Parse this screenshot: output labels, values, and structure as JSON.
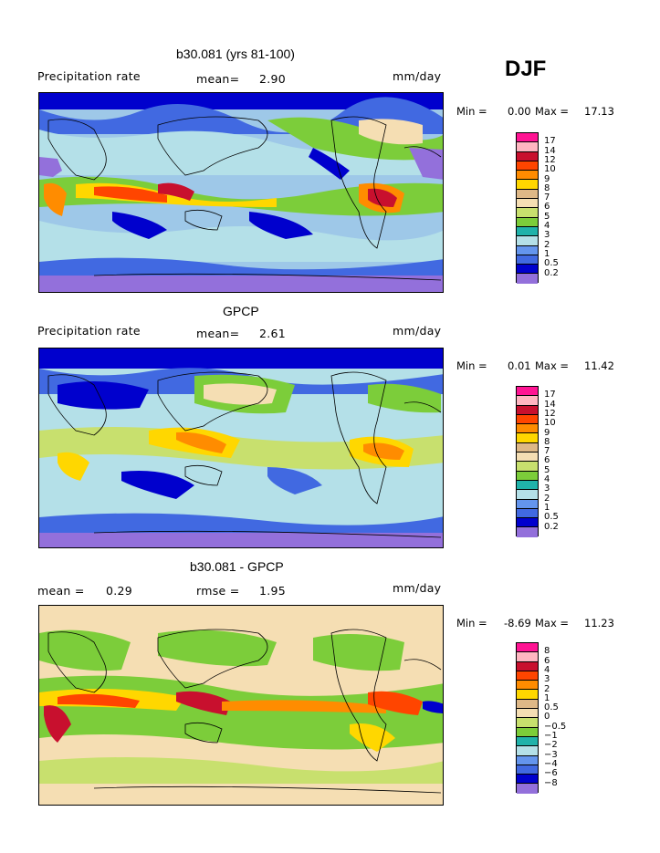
{
  "season": "DJF",
  "panels": [
    {
      "title": "b30.081 (yrs 81-100)",
      "left_label": "Precipitation rate",
      "mean_label": "mean=",
      "mean_value": "2.90",
      "units": "mm/day",
      "min_label": "Min =",
      "min_value": "0.00",
      "max_label": "Max =",
      "max_value": "17.13",
      "colorbar": {
        "colors": [
          "#ff1493",
          "#ffb6c1",
          "#c8102e",
          "#ff4500",
          "#ff8c00",
          "#ffd700",
          "#deb887",
          "#f5deb3",
          "#c8e06e",
          "#7ccd3a",
          "#20b2aa",
          "#b4e0e8",
          "#6495ed",
          "#4169e1",
          "#0000cd",
          "#9370db"
        ],
        "labels": [
          "17",
          "14",
          "12",
          "10",
          "9",
          "8",
          "7",
          "6",
          "5",
          "4",
          "3",
          "2",
          "1",
          "0.5",
          "0.2"
        ]
      }
    },
    {
      "title": "GPCP",
      "left_label": "Precipitation rate",
      "mean_label": "mean=",
      "mean_value": "2.61",
      "units": "mm/day",
      "min_label": "Min =",
      "min_value": "0.01",
      "max_label": "Max =",
      "max_value": "11.42",
      "colorbar": {
        "colors": [
          "#ff1493",
          "#ffb6c1",
          "#c8102e",
          "#ff4500",
          "#ff8c00",
          "#ffd700",
          "#deb887",
          "#f5deb3",
          "#c8e06e",
          "#7ccd3a",
          "#20b2aa",
          "#b4e0e8",
          "#6495ed",
          "#4169e1",
          "#0000cd",
          "#9370db"
        ],
        "labels": [
          "17",
          "14",
          "12",
          "10",
          "9",
          "8",
          "7",
          "6",
          "5",
          "4",
          "3",
          "2",
          "1",
          "0.5",
          "0.2"
        ]
      }
    },
    {
      "title": "b30.081 - GPCP",
      "left_label": "mean =",
      "left_value": "0.29",
      "mean_label": "rmse =",
      "mean_value": "1.95",
      "units": "mm/day",
      "min_label": "Min =",
      "min_value": "-8.69",
      "max_label": "Max =",
      "max_value": "11.23",
      "colorbar": {
        "colors": [
          "#ff1493",
          "#ffb6c1",
          "#c8102e",
          "#ff4500",
          "#ff8c00",
          "#ffd700",
          "#deb887",
          "#f5deb3",
          "#c8e06e",
          "#7ccd3a",
          "#20b2aa",
          "#b4e0e8",
          "#6495ed",
          "#4169e1",
          "#0000cd",
          "#9370db"
        ],
        "labels": [
          "8",
          "6",
          "4",
          "3",
          "2",
          "1",
          "0.5",
          "0",
          "−0.5",
          "−1",
          "−2",
          "−3",
          "−4",
          "−6",
          "−8"
        ]
      }
    }
  ]
}
